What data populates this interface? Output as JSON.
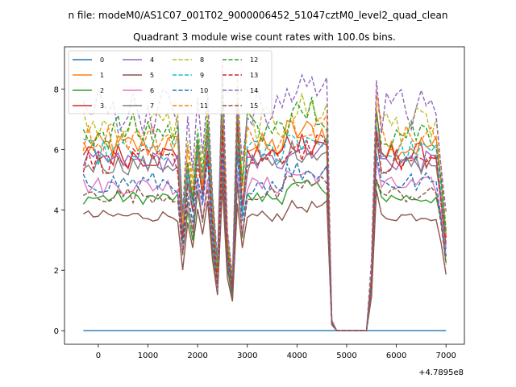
{
  "window": {
    "suptitle": "n file: modeM0/AS1C07_001T02_9000006452_51047cztM0_level2_quad_clean",
    "offset_label": "+4.7895e8"
  },
  "chart_data": {
    "type": "line",
    "title": "Quadrant 3 module wise count rates with 100.0s bins.",
    "xlabel": "",
    "ylabel": "",
    "x_offset": 478950000,
    "xlim": [
      -680,
      7370
    ],
    "ylim": [
      -0.45,
      9.4
    ],
    "xticks": [
      0,
      1000,
      2000,
      3000,
      4000,
      5000,
      6000,
      7000
    ],
    "yticks": [
      0,
      2,
      4,
      6,
      8
    ],
    "legend": {
      "placement": "top-left",
      "ncol": 4
    },
    "x_range": [
      -300,
      7000
    ],
    "x_step": 100,
    "gap_range": [
      4800,
      5400
    ],
    "series": [
      {
        "name": "0",
        "color": "#1f77b4",
        "dash": "solid",
        "base": 0.0,
        "noise": 0.0,
        "dip": 0
      },
      {
        "name": "1",
        "color": "#ff7f0e",
        "dash": "solid",
        "base": 6.1,
        "noise": 0.3,
        "dip": 1
      },
      {
        "name": "2",
        "color": "#2ca02c",
        "dash": "solid",
        "base": 4.4,
        "noise": 0.2,
        "dip": 1
      },
      {
        "name": "3",
        "color": "#d62728",
        "dash": "solid",
        "base": 5.8,
        "noise": 0.3,
        "dip": 1
      },
      {
        "name": "4",
        "color": "#9467bd",
        "dash": "solid",
        "base": 5.6,
        "noise": 0.25,
        "dip": 1
      },
      {
        "name": "5",
        "color": "#8c564b",
        "dash": "solid",
        "base": 3.8,
        "noise": 0.2,
        "dip": 1
      },
      {
        "name": "6",
        "color": "#e377c2",
        "dash": "solid",
        "base": 4.8,
        "noise": 0.25,
        "dip": 1
      },
      {
        "name": "7",
        "color": "#7f7f7f",
        "dash": "solid",
        "base": 5.5,
        "noise": 0.25,
        "dip": 1
      },
      {
        "name": "8",
        "color": "#bcbd22",
        "dash": "dashed",
        "base": 6.8,
        "noise": 0.35,
        "dip": 1
      },
      {
        "name": "9",
        "color": "#17becf",
        "dash": "dashed",
        "base": 5.9,
        "noise": 0.3,
        "dip": 1
      },
      {
        "name": "10",
        "color": "#1f77b4",
        "dash": "dashed",
        "base": 4.9,
        "noise": 0.3,
        "dip": 1
      },
      {
        "name": "11",
        "color": "#ff7f0e",
        "dash": "dashed",
        "base": 6.4,
        "noise": 0.3,
        "dip": 1
      },
      {
        "name": "12",
        "color": "#2ca02c",
        "dash": "dashed",
        "base": 6.6,
        "noise": 0.4,
        "dip": 1
      },
      {
        "name": "13",
        "color": "#d62728",
        "dash": "dashed",
        "base": 5.6,
        "noise": 0.3,
        "dip": 1
      },
      {
        "name": "14",
        "color": "#9467bd",
        "dash": "dashed",
        "base": 7.3,
        "noise": 0.45,
        "dip": 1
      },
      {
        "name": "15",
        "color": "#8c564b",
        "dash": "dashed",
        "base": 4.5,
        "noise": 0.25,
        "dip": 1
      }
    ]
  }
}
